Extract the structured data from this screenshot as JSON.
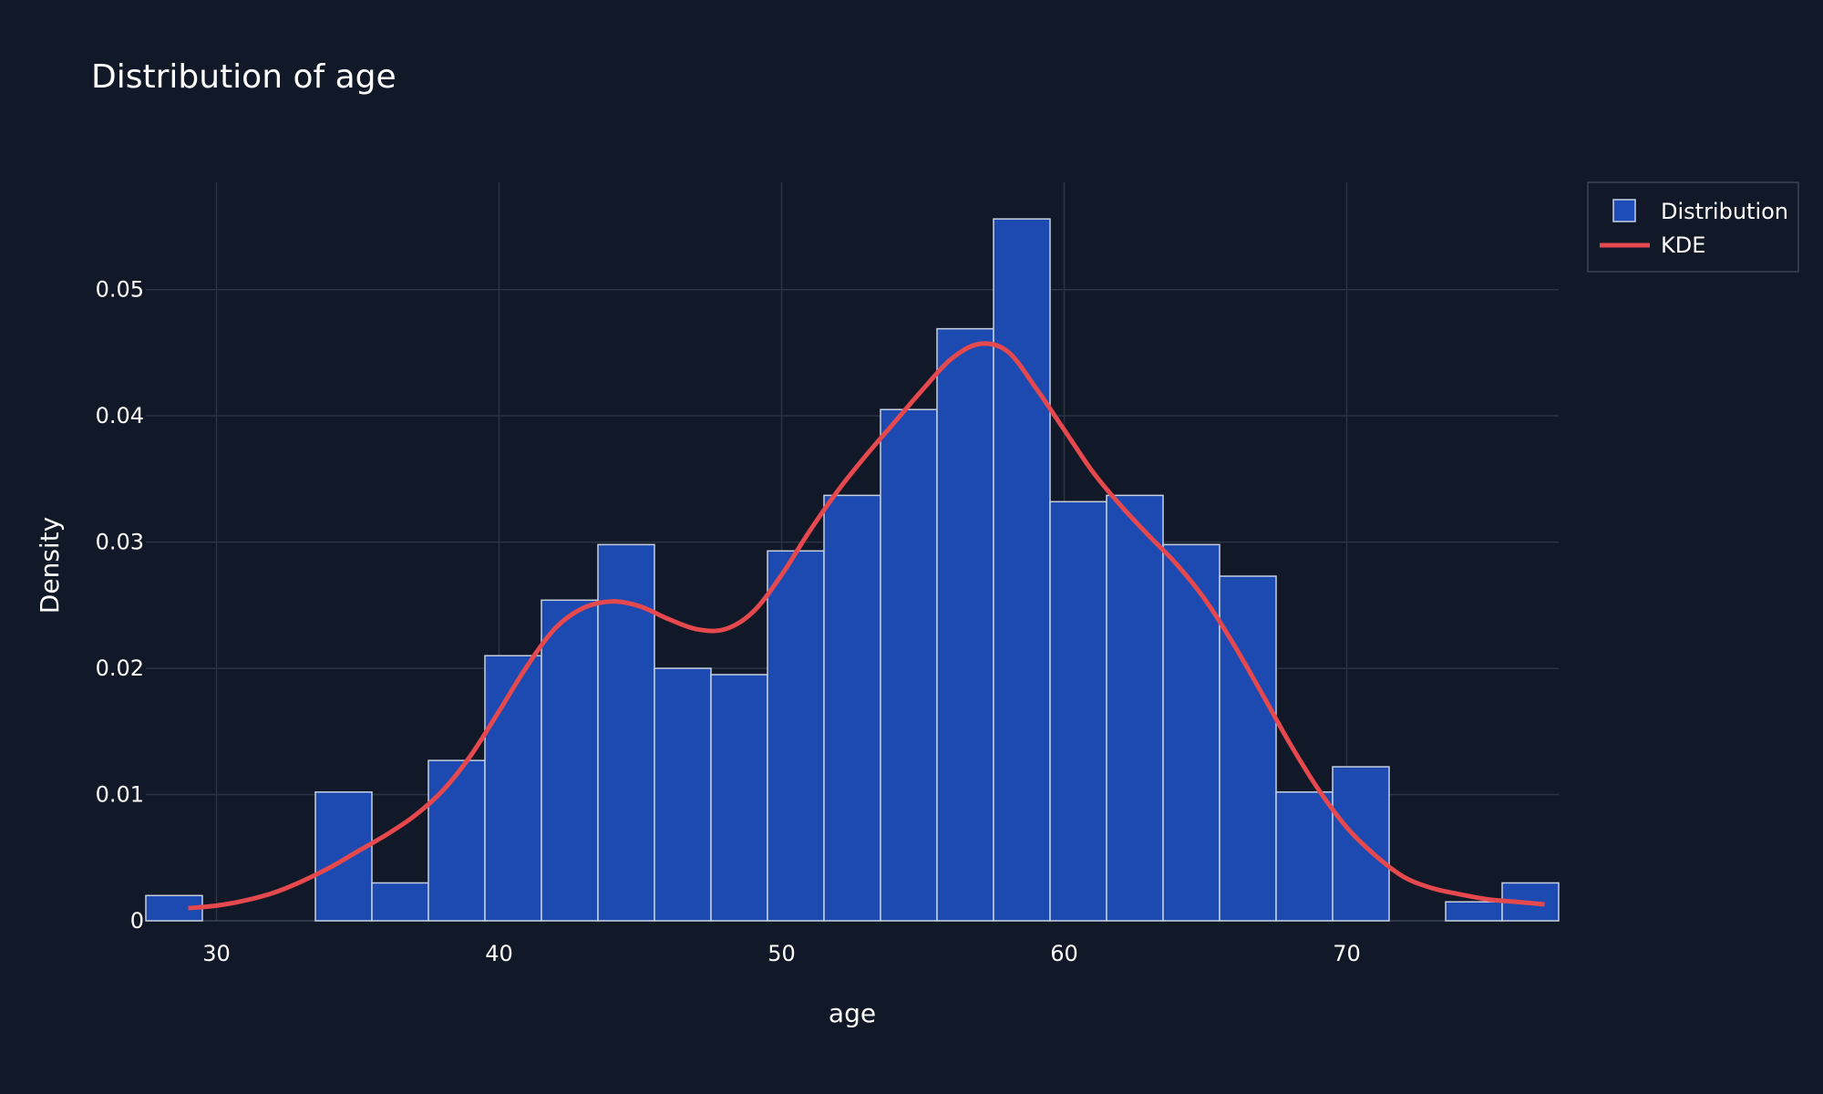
{
  "chart_data": {
    "type": "bar",
    "title": "Distribution of age",
    "xlabel": "age",
    "ylabel": "Density",
    "xlim": [
      27.5,
      77.5
    ],
    "ylim": [
      0,
      0.0585
    ],
    "x_ticks": [
      30,
      40,
      50,
      60,
      70
    ],
    "y_ticks": [
      0,
      0.01,
      0.02,
      0.03,
      0.04,
      0.05
    ],
    "y_tick_labels": [
      "0",
      "0.01",
      "0.02",
      "0.03",
      "0.04",
      "0.05"
    ],
    "grid": true,
    "legend_position": "top-right",
    "colors": {
      "background": "#111827",
      "grid": "#2a3446",
      "bar_fill": "#1e4db7",
      "bar_edge": "#c7d0e0",
      "kde_line": "#e5484d"
    },
    "series": [
      {
        "name": "Distribution",
        "type": "histogram",
        "bin_width": 2,
        "bin_start": [
          27.5,
          29.5,
          31.5,
          33.5,
          35.5,
          37.5,
          39.5,
          41.5,
          43.5,
          45.5,
          47.5,
          49.5,
          51.5,
          53.5,
          55.5,
          57.5,
          59.5,
          61.5,
          63.5,
          65.5,
          67.5,
          69.5,
          71.5,
          73.5,
          75.5
        ],
        "values": [
          0.002,
          0,
          0,
          0.0102,
          0.003,
          0.0127,
          0.021,
          0.0254,
          0.0298,
          0.02,
          0.0195,
          0.0293,
          0.0337,
          0.0405,
          0.0469,
          0.0556,
          0.0332,
          0.0337,
          0.0298,
          0.0273,
          0.0102,
          0.0122,
          0,
          0.0015,
          0.003
        ]
      },
      {
        "name": "KDE",
        "type": "line",
        "x": [
          29,
          30,
          31,
          32,
          33,
          34,
          35,
          36,
          37,
          38,
          39,
          40,
          41,
          42,
          43,
          44,
          45,
          46,
          47,
          48,
          49,
          50,
          51,
          52,
          53,
          54,
          55,
          56,
          57,
          58,
          59,
          60,
          61,
          62,
          63,
          64,
          65,
          66,
          67,
          68,
          69,
          70,
          71,
          72,
          73,
          74,
          75,
          76,
          77
        ],
        "y": [
          0.001,
          0.0012,
          0.0016,
          0.0022,
          0.0031,
          0.0042,
          0.0055,
          0.0068,
          0.0083,
          0.0103,
          0.0131,
          0.0166,
          0.0202,
          0.0232,
          0.0248,
          0.0253,
          0.0249,
          0.0239,
          0.0231,
          0.0231,
          0.0245,
          0.0274,
          0.0309,
          0.0341,
          0.0369,
          0.0395,
          0.0421,
          0.0445,
          0.0457,
          0.0451,
          0.0422,
          0.0389,
          0.0356,
          0.0329,
          0.0305,
          0.0282,
          0.0254,
          0.0219,
          0.018,
          0.014,
          0.0104,
          0.0074,
          0.0052,
          0.0035,
          0.0026,
          0.0021,
          0.0017,
          0.0015,
          0.0013
        ]
      }
    ]
  }
}
